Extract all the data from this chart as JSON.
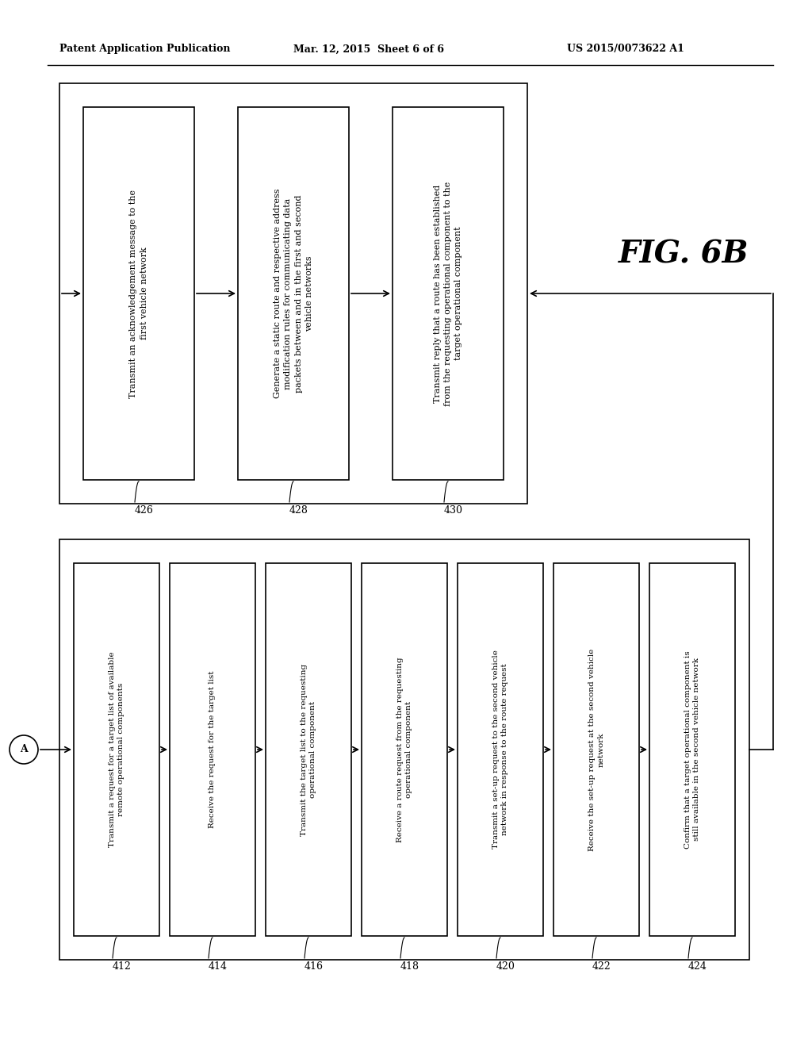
{
  "header_left": "Patent Application Publication",
  "header_mid": "Mar. 12, 2015  Sheet 6 of 6",
  "header_right": "US 2015/0073622 A1",
  "fig_label": "FIG. 6B",
  "top_boxes": [
    {
      "label": "426",
      "text": "Transmit an acknowledgement message to the\nfirst vehicle network"
    },
    {
      "label": "428",
      "text": "Generate a static route and respective address\nmodification rules for communicating data\npackets between and in the first and second\nvehicle networks"
    },
    {
      "label": "430",
      "text": "Transmit reply that a route has been established\nfrom the requesting operational component to the\ntarget operational component"
    }
  ],
  "bottom_boxes": [
    {
      "label": "412",
      "text": "Transmit a request for a target list of available\nremote operational components"
    },
    {
      "label": "414",
      "text": "Receive the request for the target list"
    },
    {
      "label": "416",
      "text": "Transmit the target list to the requesting\noperational component"
    },
    {
      "label": "418",
      "text": "Receive a route request from the requesting\noperational component"
    },
    {
      "label": "420",
      "text": "Transmit a set-up request to the second vehicle\nnetwork in response to the route request"
    },
    {
      "label": "422",
      "text": "Receive the set-up request at the second vehicle\nnetwork"
    },
    {
      "label": "424",
      "text": "Confirm that a target operational component is\nstill available in the second vehicle network"
    }
  ],
  "connector_label": "A",
  "background_color": "#ffffff",
  "box_edge_color": "#000000",
  "text_color": "#000000",
  "arrow_color": "#000000"
}
